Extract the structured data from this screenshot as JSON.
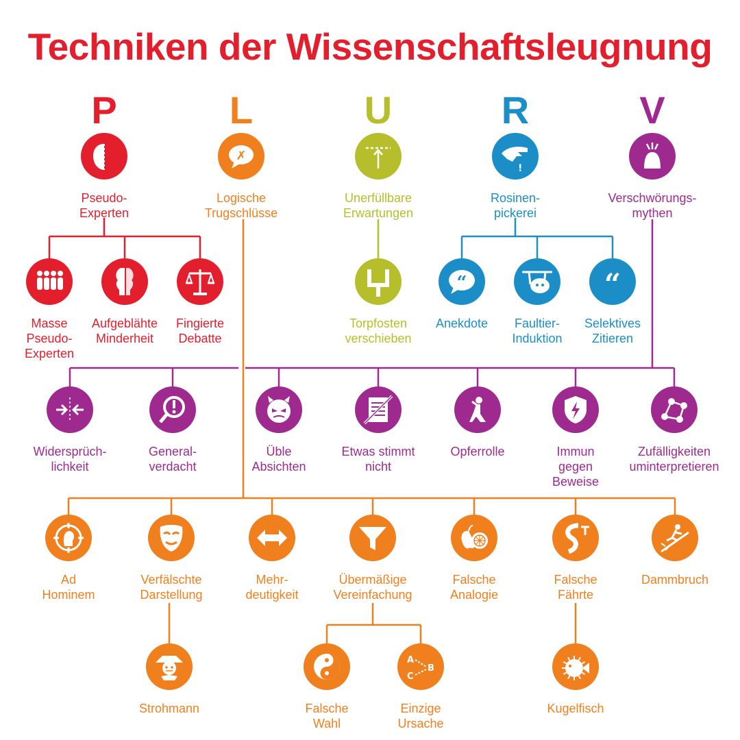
{
  "title": "Techniken der Wissenschaftsleugnung",
  "colors": {
    "P": "#e31e2d",
    "L": "#f07f1e",
    "U": "#b6be2b",
    "R": "#1b8ec7",
    "V": "#9e2a8f"
  },
  "letters": [
    {
      "text": "P",
      "group": "P"
    },
    {
      "text": "L",
      "group": "L"
    },
    {
      "text": "U",
      "group": "U"
    },
    {
      "text": "R",
      "group": "R"
    },
    {
      "text": "V",
      "group": "V"
    }
  ],
  "nodes": [
    {
      "id": "pseudo-experten",
      "label": "Pseudo-\nExperten",
      "group": "P",
      "icon": "face-profile-icon"
    },
    {
      "id": "logische-trugschluesse",
      "label": "Logische\nTrugschlüsse",
      "group": "L",
      "icon": "speech-bubble-x-icon"
    },
    {
      "id": "unerfuellbare-erwartungen",
      "label": "Unerfüllbare\nErwartungen",
      "group": "U",
      "icon": "arrow-to-line-icon"
    },
    {
      "id": "rosinenpickerei",
      "label": "Rosinen-\npickerei",
      "group": "R",
      "icon": "picking-hand-icon"
    },
    {
      "id": "verschwoerungsmythen",
      "label": "Verschwörungs-\nmythen",
      "group": "V",
      "icon": "lightning-head-icon"
    },
    {
      "id": "masse-pseudo-experten",
      "label": "Masse\nPseudo-\nExperten",
      "group": "P",
      "icon": "crowd-icon"
    },
    {
      "id": "aufgeblaehte-minderheit",
      "label": "Aufgeblähte\nMinderheit",
      "group": "P",
      "icon": "faces-vase-icon"
    },
    {
      "id": "fingierte-debatte",
      "label": "Fingierte\nDebatte",
      "group": "P",
      "icon": "scales-icon"
    },
    {
      "id": "torpfosten-verschieben",
      "label": "Torpfosten\nverschieben",
      "group": "U",
      "icon": "goalpost-icon"
    },
    {
      "id": "anekdote",
      "label": "Anekdote",
      "group": "R",
      "icon": "quote-bubble-icon"
    },
    {
      "id": "faultier-induktion",
      "label": "Faultier-\nInduktion",
      "group": "R",
      "icon": "sloth-icon"
    },
    {
      "id": "selektives-zitieren",
      "label": "Selektives\nZitieren",
      "group": "R",
      "icon": "quotes-icon"
    },
    {
      "id": "widerspruechlichkeit",
      "label": "Widersprüch-\nlichkeit",
      "group": "V",
      "icon": "opposing-arrows-icon"
    },
    {
      "id": "generalverdacht",
      "label": "General-\nverdacht",
      "group": "V",
      "icon": "magnifier-exclamation-icon"
    },
    {
      "id": "ueble-absichten",
      "label": "Üble\nAbsichten",
      "group": "V",
      "icon": "devil-face-icon"
    },
    {
      "id": "etwas-stimmt-nicht",
      "label": "Etwas stimmt\nnicht",
      "group": "V",
      "icon": "crossed-document-icon"
    },
    {
      "id": "opferrolle",
      "label": "Opferrolle",
      "group": "V",
      "icon": "kneeling-figure-icon"
    },
    {
      "id": "immun-gegen-beweise",
      "label": "Immun\ngegen\nBeweise",
      "group": "V",
      "icon": "shield-lightning-icon"
    },
    {
      "id": "zufaelligkeiten-uminterpretieren",
      "label": "Zufälligkeiten\numinterpretieren",
      "group": "V",
      "icon": "connected-dots-icon"
    },
    {
      "id": "ad-hominem",
      "label": "Ad\nHominem",
      "group": "L",
      "icon": "target-head-icon"
    },
    {
      "id": "verfaelschte-darstellung",
      "label": "Verfälschte\nDarstellung",
      "group": "L",
      "icon": "mask-icon"
    },
    {
      "id": "mehrdeutigkeit",
      "label": "Mehr-\ndeutigkeit",
      "group": "L",
      "icon": "double-arrow-icon"
    },
    {
      "id": "uebermaessige-vereinfachung",
      "label": "Übermäßige\nVereinfachung",
      "group": "L",
      "icon": "funnel-icon"
    },
    {
      "id": "falsche-analogie",
      "label": "Falsche\nAnalogie",
      "group": "L",
      "icon": "apple-orange-icon"
    },
    {
      "id": "falsche-faehrte",
      "label": "Falsche\nFährte",
      "group": "L",
      "icon": "path-fork-icon"
    },
    {
      "id": "dammbruch",
      "label": "Dammbruch",
      "group": "L",
      "icon": "slipping-figure-icon"
    },
    {
      "id": "strohmann",
      "label": "Strohmann",
      "group": "L",
      "icon": "scarecrow-icon"
    },
    {
      "id": "falsche-wahl",
      "label": "Falsche\nWahl",
      "group": "L",
      "icon": "yin-yang-icon"
    },
    {
      "id": "einzige-ursache",
      "label": "Einzige\nUrsache",
      "group": "L",
      "icon": "abc-arrows-icon"
    },
    {
      "id": "kugelfisch",
      "label": "Kugelfisch",
      "group": "L",
      "icon": "pufferfish-icon"
    }
  ],
  "edges": [
    [
      "pseudo-experten",
      "masse-pseudo-experten"
    ],
    [
      "pseudo-experten",
      "aufgeblaehte-minderheit"
    ],
    [
      "pseudo-experten",
      "fingierte-debatte"
    ],
    [
      "unerfuellbare-erwartungen",
      "torpfosten-verschieben"
    ],
    [
      "rosinenpickerei",
      "anekdote"
    ],
    [
      "rosinenpickerei",
      "faultier-induktion"
    ],
    [
      "rosinenpickerei",
      "selektives-zitieren"
    ],
    [
      "verschwoerungsmythen",
      "widerspruechlichkeit"
    ],
    [
      "verschwoerungsmythen",
      "generalverdacht"
    ],
    [
      "verschwoerungsmythen",
      "ueble-absichten"
    ],
    [
      "verschwoerungsmythen",
      "etwas-stimmt-nicht"
    ],
    [
      "verschwoerungsmythen",
      "opferrolle"
    ],
    [
      "verschwoerungsmythen",
      "immun-gegen-beweise"
    ],
    [
      "verschwoerungsmythen",
      "zufaelligkeiten-uminterpretieren"
    ],
    [
      "logische-trugschluesse",
      "ad-hominem"
    ],
    [
      "logische-trugschluesse",
      "verfaelschte-darstellung"
    ],
    [
      "logische-trugschluesse",
      "mehrdeutigkeit"
    ],
    [
      "logische-trugschluesse",
      "uebermaessige-vereinfachung"
    ],
    [
      "logische-trugschluesse",
      "falsche-analogie"
    ],
    [
      "logische-trugschluesse",
      "falsche-faehrte"
    ],
    [
      "logische-trugschluesse",
      "dammbruch"
    ],
    [
      "verfaelschte-darstellung",
      "strohmann"
    ],
    [
      "uebermaessige-vereinfachung",
      "falsche-wahl"
    ],
    [
      "uebermaessige-vereinfachung",
      "einzige-ursache"
    ],
    [
      "falsche-faehrte",
      "kugelfisch"
    ]
  ]
}
